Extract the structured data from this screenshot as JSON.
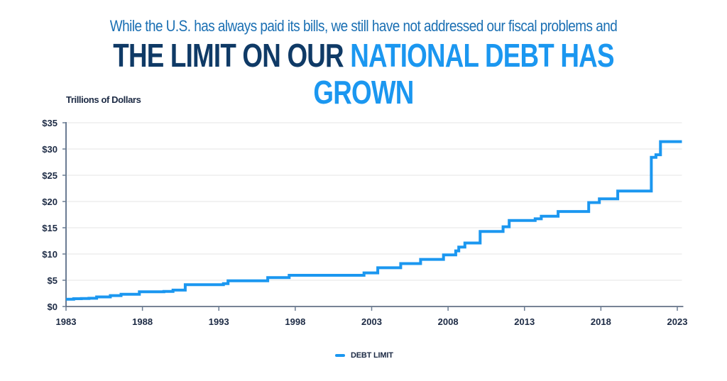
{
  "header": {
    "subtitle": "While the U.S. has always paid its bills, we still have not addressed our fiscal problems and",
    "title_dark": "THE LIMIT ON OUR ",
    "title_light": "NATIONAL DEBT HAS GROWN"
  },
  "colors": {
    "line": "#1b97f0",
    "title_dark": "#0f3a66",
    "title_light": "#1b97f0",
    "subtitle": "#1a6fb3",
    "axis": "#6b7c93",
    "grid": "#e6e6e6",
    "text": "#1c2a44"
  },
  "legend": {
    "label": "DEBT LIMIT"
  },
  "chart_data": {
    "type": "line",
    "title": "The Limit on Our National Debt Has Grown",
    "subtitle": "While the U.S. has always paid its bills, we still have not addressed our fiscal problems and",
    "xlabel": "",
    "ylabel": "Trillions of Dollars",
    "xlim": [
      1983,
      2023.3
    ],
    "ylim": [
      0,
      35
    ],
    "x_ticks": [
      1983,
      1988,
      1993,
      1998,
      2003,
      2008,
      2013,
      2018,
      2023
    ],
    "y_ticks": [
      0,
      5,
      10,
      15,
      20,
      25,
      30,
      35
    ],
    "y_tick_labels": [
      "$0",
      "$5",
      "$10",
      "$15",
      "$20",
      "$25",
      "$30",
      "$35"
    ],
    "grid": "horizontal",
    "legend_position": "bottom-center",
    "step": true,
    "series": [
      {
        "name": "DEBT LIMIT",
        "x": [
          1983.0,
          1983.5,
          1984.0,
          1984.5,
          1985.0,
          1985.9,
          1986.6,
          1987.8,
          1989.4,
          1990.0,
          1990.8,
          1993.3,
          1993.6,
          1996.2,
          1997.6,
          2002.5,
          2003.4,
          2004.9,
          2006.2,
          2007.7,
          2008.5,
          2008.7,
          2009.1,
          2010.1,
          2011.6,
          2012.0,
          2013.7,
          2014.1,
          2015.2,
          2017.2,
          2017.9,
          2019.1,
          2021.3,
          2021.6,
          2021.9,
          2023.3
        ],
        "values": [
          1.39,
          1.49,
          1.52,
          1.57,
          1.82,
          2.08,
          2.32,
          2.8,
          2.87,
          3.12,
          4.15,
          4.37,
          4.9,
          5.5,
          5.95,
          6.4,
          7.38,
          8.18,
          8.97,
          9.82,
          10.6,
          11.32,
          12.1,
          14.29,
          15.19,
          16.39,
          16.7,
          17.2,
          18.1,
          19.8,
          20.5,
          22.0,
          28.4,
          28.9,
          31.4,
          31.4
        ]
      }
    ]
  }
}
